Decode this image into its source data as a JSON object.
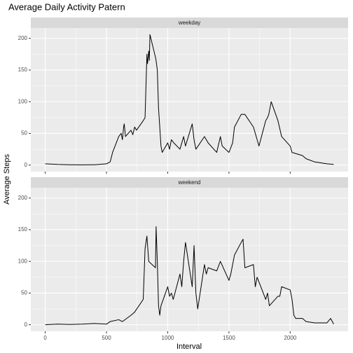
{
  "chart_data": {
    "type": "line",
    "title": "Average Daily Activity Patern",
    "x_label": "Interval",
    "y_label": "Average Steps",
    "color": "#000000",
    "grid": true,
    "xlim": [
      -117.75,
      2472.75
    ],
    "xticks": [
      0,
      500,
      1000,
      1500,
      2000
    ],
    "ylim": [
      -10.3,
      216.3
    ],
    "yticks": [
      0,
      50,
      100,
      150,
      200
    ],
    "panels": [
      {
        "strip": "weekday",
        "x": [
          0,
          100,
          200,
          300,
          400,
          500,
          530,
          550,
          600,
          620,
          630,
          640,
          645,
          655,
          700,
          715,
          730,
          745,
          800,
          815,
          830,
          835,
          845,
          850,
          855,
          900,
          905,
          915,
          925,
          935,
          945,
          955,
          1000,
          1015,
          1030,
          1050,
          1100,
          1130,
          1145,
          1200,
          1215,
          1230,
          1300,
          1330,
          1400,
          1430,
          1445,
          1500,
          1530,
          1545,
          1600,
          1630,
          1700,
          1730,
          1745,
          1800,
          1815,
          1825,
          1845,
          1900,
          1930,
          2000,
          2015,
          2100,
          2130,
          2200,
          2300,
          2355
        ],
        "values": [
          2,
          1,
          0.5,
          0.3,
          0.5,
          2,
          5,
          20,
          45,
          50,
          40,
          60,
          65,
          45,
          55,
          48,
          60,
          55,
          70,
          75,
          175,
          160,
          180,
          165,
          206,
          170,
          165,
          150,
          90,
          60,
          30,
          20,
          35,
          25,
          40,
          35,
          25,
          45,
          30,
          65,
          40,
          25,
          45,
          35,
          20,
          45,
          30,
          20,
          35,
          60,
          80,
          80,
          60,
          40,
          30,
          70,
          75,
          80,
          100,
          70,
          45,
          30,
          20,
          15,
          10,
          5,
          2,
          1
        ]
      },
      {
        "strip": "weekend",
        "x": [
          0,
          100,
          200,
          300,
          400,
          500,
          530,
          600,
          630,
          700,
          730,
          800,
          815,
          830,
          845,
          900,
          905,
          915,
          925,
          935,
          945,
          1000,
          1015,
          1030,
          1045,
          1100,
          1115,
          1130,
          1145,
          1200,
          1215,
          1230,
          1245,
          1300,
          1315,
          1330,
          1400,
          1430,
          1500,
          1515,
          1545,
          1600,
          1615,
          1630,
          1700,
          1715,
          1730,
          1800,
          1815,
          1830,
          1900,
          1915,
          1930,
          2000,
          2015,
          2030,
          2045,
          2100,
          2130,
          2200,
          2300,
          2330,
          2355
        ],
        "values": [
          0,
          1,
          0.5,
          1,
          2,
          1,
          5,
          8,
          5,
          15,
          20,
          40,
          120,
          140,
          100,
          90,
          155,
          100,
          30,
          15,
          30,
          60,
          45,
          50,
          40,
          80,
          60,
          100,
          130,
          60,
          125,
          50,
          25,
          95,
          80,
          90,
          85,
          100,
          70,
          80,
          110,
          130,
          135,
          90,
          95,
          60,
          75,
          40,
          50,
          30,
          45,
          45,
          60,
          55,
          40,
          15,
          10,
          10,
          5,
          3,
          3,
          10,
          1
        ]
      }
    ]
  }
}
